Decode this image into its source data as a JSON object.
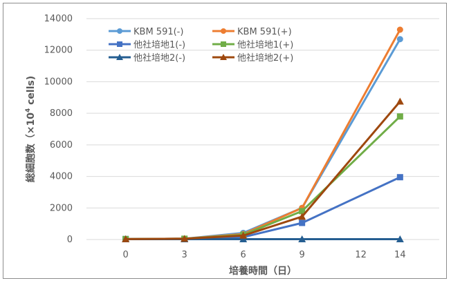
{
  "chart_data": {
    "type": "line",
    "x": [
      0,
      3,
      6,
      9,
      14
    ],
    "xticks": [
      0,
      3,
      6,
      9,
      12,
      14
    ],
    "yticks": [
      0,
      2000,
      4000,
      6000,
      8000,
      10000,
      12000,
      14000
    ],
    "xlim": [
      -2,
      16
    ],
    "ylim": [
      0,
      14000
    ],
    "xlabel": "培養時間（日）",
    "ylabel": "総細胞数（×10",
    "ylabel_sup": "4",
    "ylabel_suffix": " cells)",
    "grid": true,
    "legend_position": "top-left",
    "series": [
      {
        "name": "KBM 591(-)",
        "color": "#5B9BD5",
        "marker": "circle",
        "values": [
          30,
          50,
          420,
          2000,
          12700
        ]
      },
      {
        "name": "KBM 591(+)",
        "color": "#ED7D31",
        "marker": "circle",
        "values": [
          30,
          50,
          350,
          2000,
          13300
        ]
      },
      {
        "name": "他社培地1(-)",
        "color": "#4472C4",
        "marker": "square",
        "values": [
          30,
          40,
          150,
          1050,
          3950
        ]
      },
      {
        "name": "他社培地1(+)",
        "color": "#70AD47",
        "marker": "square",
        "values": [
          30,
          50,
          300,
          1800,
          7800
        ]
      },
      {
        "name": "他社培地2(-)",
        "color": "#255E91",
        "marker": "triangle",
        "values": [
          20,
          20,
          20,
          20,
          20
        ]
      },
      {
        "name": "他社培地2(+)",
        "color": "#9E480E",
        "marker": "triangle",
        "values": [
          30,
          50,
          250,
          1450,
          8750
        ]
      }
    ]
  }
}
